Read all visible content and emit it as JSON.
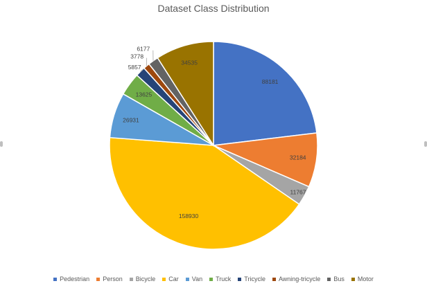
{
  "chart_data": {
    "type": "pie",
    "title": "Dataset Class Distribution",
    "categories": [
      "Pedestrian",
      "Person",
      "Bicycle",
      "Car",
      "Van",
      "Truck",
      "Tricycle",
      "Awning-tricycle",
      "Bus",
      "Motor"
    ],
    "values": [
      88181,
      32184,
      11767,
      158930,
      26931,
      13625,
      5857,
      3778,
      6177,
      34535
    ],
    "data_labels": [
      "88181",
      "32184",
      "11767",
      "158930",
      "26931",
      "13625",
      "5857",
      "3778",
      "6177",
      "34535"
    ],
    "colors": [
      "#4472C4",
      "#ED7D31",
      "#A5A5A5",
      "#FFC000",
      "#5B9BD5",
      "#70AD47",
      "#264478",
      "#9E480E",
      "#636363",
      "#997300"
    ],
    "legend_position": "bottom",
    "start_angle": "12 o'clock",
    "direction": "clockwise"
  }
}
